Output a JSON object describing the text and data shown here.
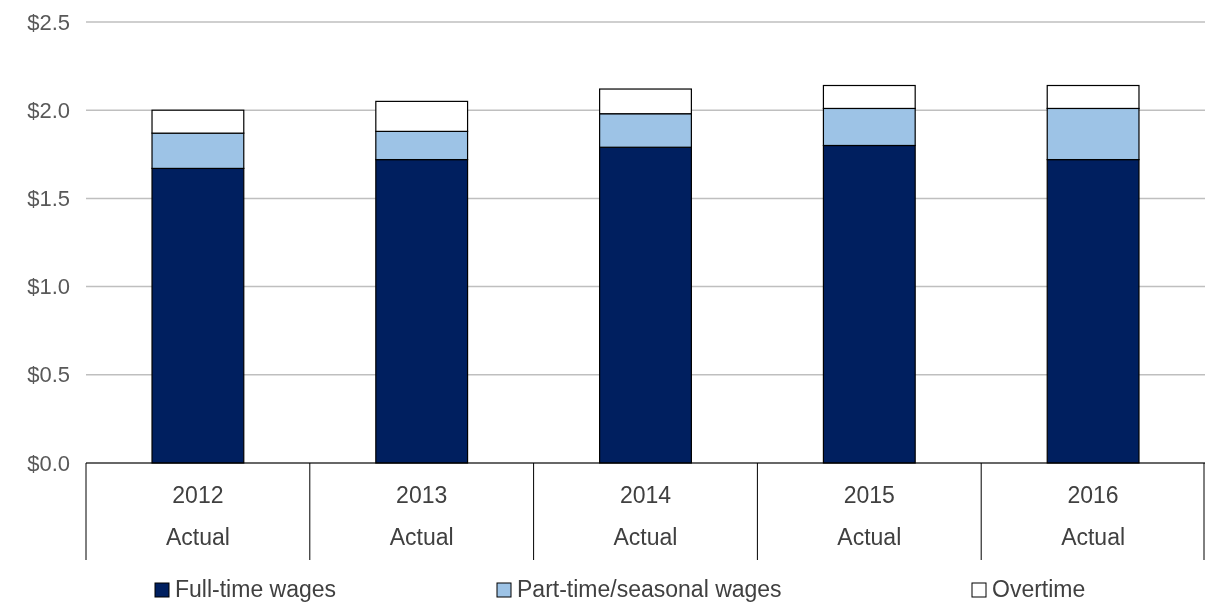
{
  "chart_data": {
    "type": "bar",
    "stacked": true,
    "categories": [
      "2012\nActual",
      "2013\nActual",
      "2014\nActual",
      "2015\nActual",
      "2016\nActual"
    ],
    "series": [
      {
        "name": "Full-time wages",
        "color": "#001f5f",
        "values": [
          1.67,
          1.72,
          1.79,
          1.8,
          1.72
        ]
      },
      {
        "name": "Part-time/seasonal wages",
        "color": "#9dc3e6",
        "values": [
          0.2,
          0.16,
          0.19,
          0.21,
          0.29
        ]
      },
      {
        "name": "Overtime",
        "color": "#ffffff",
        "values": [
          0.13,
          0.17,
          0.14,
          0.13,
          0.13
        ]
      }
    ],
    "ylim": [
      0,
      2.5
    ],
    "yticks": [
      {
        "value": 0,
        "label": "$0.0"
      },
      {
        "value": 0.5,
        "label": "$0.5"
      },
      {
        "value": 1,
        "label": "$1.0"
      },
      {
        "value": 1.5,
        "label": "$1.5"
      },
      {
        "value": 2,
        "label": "$2.0"
      },
      {
        "value": 2.5,
        "label": "$2.5"
      }
    ],
    "grid": "y",
    "legend": "bottom"
  }
}
